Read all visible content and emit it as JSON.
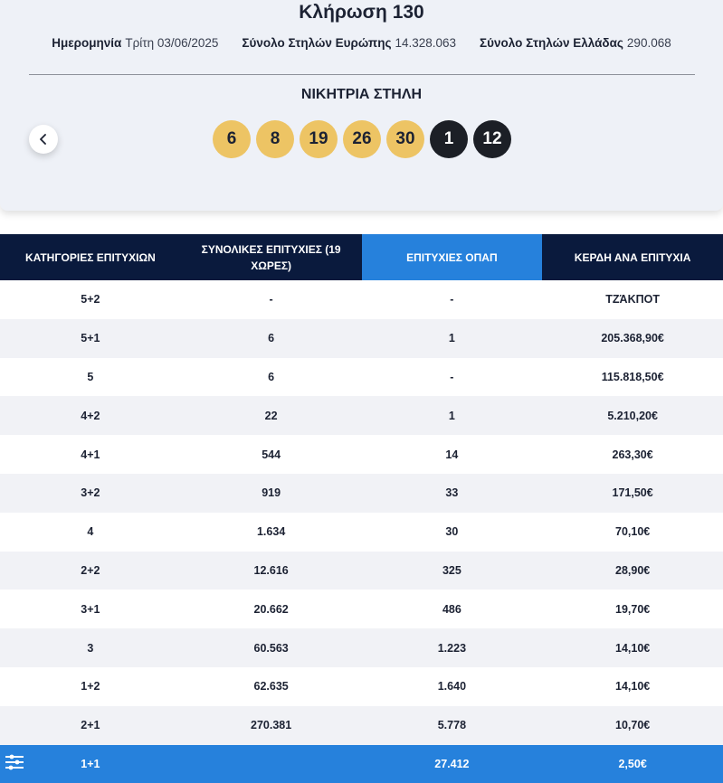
{
  "draw": {
    "title": "Κλήρωση 130",
    "meta": [
      {
        "label": "Ημερομηνία",
        "value": "Τρίτη 03/06/2025"
      },
      {
        "label": "Σύνολο Στηλών Ευρώπης",
        "value": "14.328.063"
      },
      {
        "label": "Σύνολο Στηλών Ελλάδας",
        "value": "290.068"
      }
    ],
    "winning_title": "ΝΙΚΗΤΡΙΑ ΣΤΗΛΗ",
    "main_numbers": [
      "6",
      "8",
      "19",
      "26",
      "30"
    ],
    "euro_numbers": [
      "1",
      "12"
    ],
    "prev_icon": "chevron-left-icon"
  },
  "table": {
    "headers": [
      "ΚΑΤΗΓΟΡΙΕΣ ΕΠΙΤΥΧΙΩΝ",
      "ΣΥΝΟΛΙΚΕΣ ΕΠΙΤΥΧΙΕΣ (19 ΧΩΡΕΣ)",
      "ΕΠΙΤΥΧΙΕΣ ΟΠΑΠ",
      "ΚΕΡΔΗ ΑΝΑ ΕΠΙΤΥΧΙΑ"
    ],
    "rows": [
      [
        "5+2",
        "-",
        "-",
        "ΤΖΆΚΠΟΤ"
      ],
      [
        "5+1",
        "6",
        "1",
        "205.368,90€"
      ],
      [
        "5",
        "6",
        "-",
        "115.818,50€"
      ],
      [
        "4+2",
        "22",
        "1",
        "5.210,20€"
      ],
      [
        "4+1",
        "544",
        "14",
        "263,30€"
      ],
      [
        "3+2",
        "919",
        "33",
        "171,50€"
      ],
      [
        "4",
        "1.634",
        "30",
        "70,10€"
      ],
      [
        "2+2",
        "12.616",
        "325",
        "28,90€"
      ],
      [
        "3+1",
        "20.662",
        "486",
        "19,70€"
      ],
      [
        "3",
        "60.563",
        "1.223",
        "14,10€"
      ],
      [
        "1+2",
        "62.635",
        "1.640",
        "14,10€"
      ],
      [
        "2+1",
        "270.381",
        "5.778",
        "10,70€"
      ],
      [
        "1+1",
        "",
        "27.412",
        "2,50€"
      ]
    ]
  },
  "colors": {
    "main_ball": "#edc464",
    "euro_ball": "#1c1f26",
    "header_dark": "#0a1a3d",
    "header_highlight": "#2681dc"
  },
  "accessibility_icon": "accessibility-menu-icon"
}
